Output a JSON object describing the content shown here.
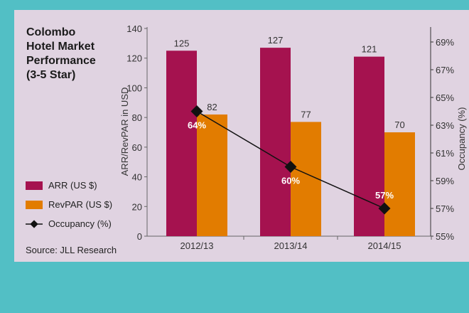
{
  "title": "Colombo\nHotel Market\nPerformance\n(3-5 Star)",
  "source": "Source: JLL Research",
  "colors": {
    "arr": "#a5124f",
    "revpar": "#e27c00",
    "occupancy": "#111111",
    "panel": "#e0d3e1",
    "background": "#52bfc5"
  },
  "chart_data": {
    "type": "bar",
    "categories": [
      "2012/13",
      "2013/14",
      "2014/15"
    ],
    "series": [
      {
        "name": "ARR (US $)",
        "type": "bar",
        "axis": "left",
        "values": [
          125,
          127,
          121
        ]
      },
      {
        "name": "RevPAR (US $)",
        "type": "bar",
        "axis": "left",
        "values": [
          82,
          77,
          70
        ]
      },
      {
        "name": "Occupancy (%)",
        "type": "line",
        "axis": "right",
        "values": [
          64,
          60,
          57
        ],
        "labels": [
          "64%",
          "60%",
          "57%"
        ]
      }
    ],
    "ylabel": "ARR/RevPAR in USD",
    "ylim": [
      0,
      140
    ],
    "yticks": [
      "0",
      "20",
      "40",
      "60",
      "80",
      "100",
      "120",
      "140"
    ],
    "y2label": "Occupancy (%)",
    "y2lim": [
      55,
      69
    ],
    "y2ticks": [
      "55%",
      "57%",
      "59%",
      "61%",
      "63%",
      "65%",
      "67%",
      "69%"
    ],
    "legend": "left",
    "grid": false
  }
}
